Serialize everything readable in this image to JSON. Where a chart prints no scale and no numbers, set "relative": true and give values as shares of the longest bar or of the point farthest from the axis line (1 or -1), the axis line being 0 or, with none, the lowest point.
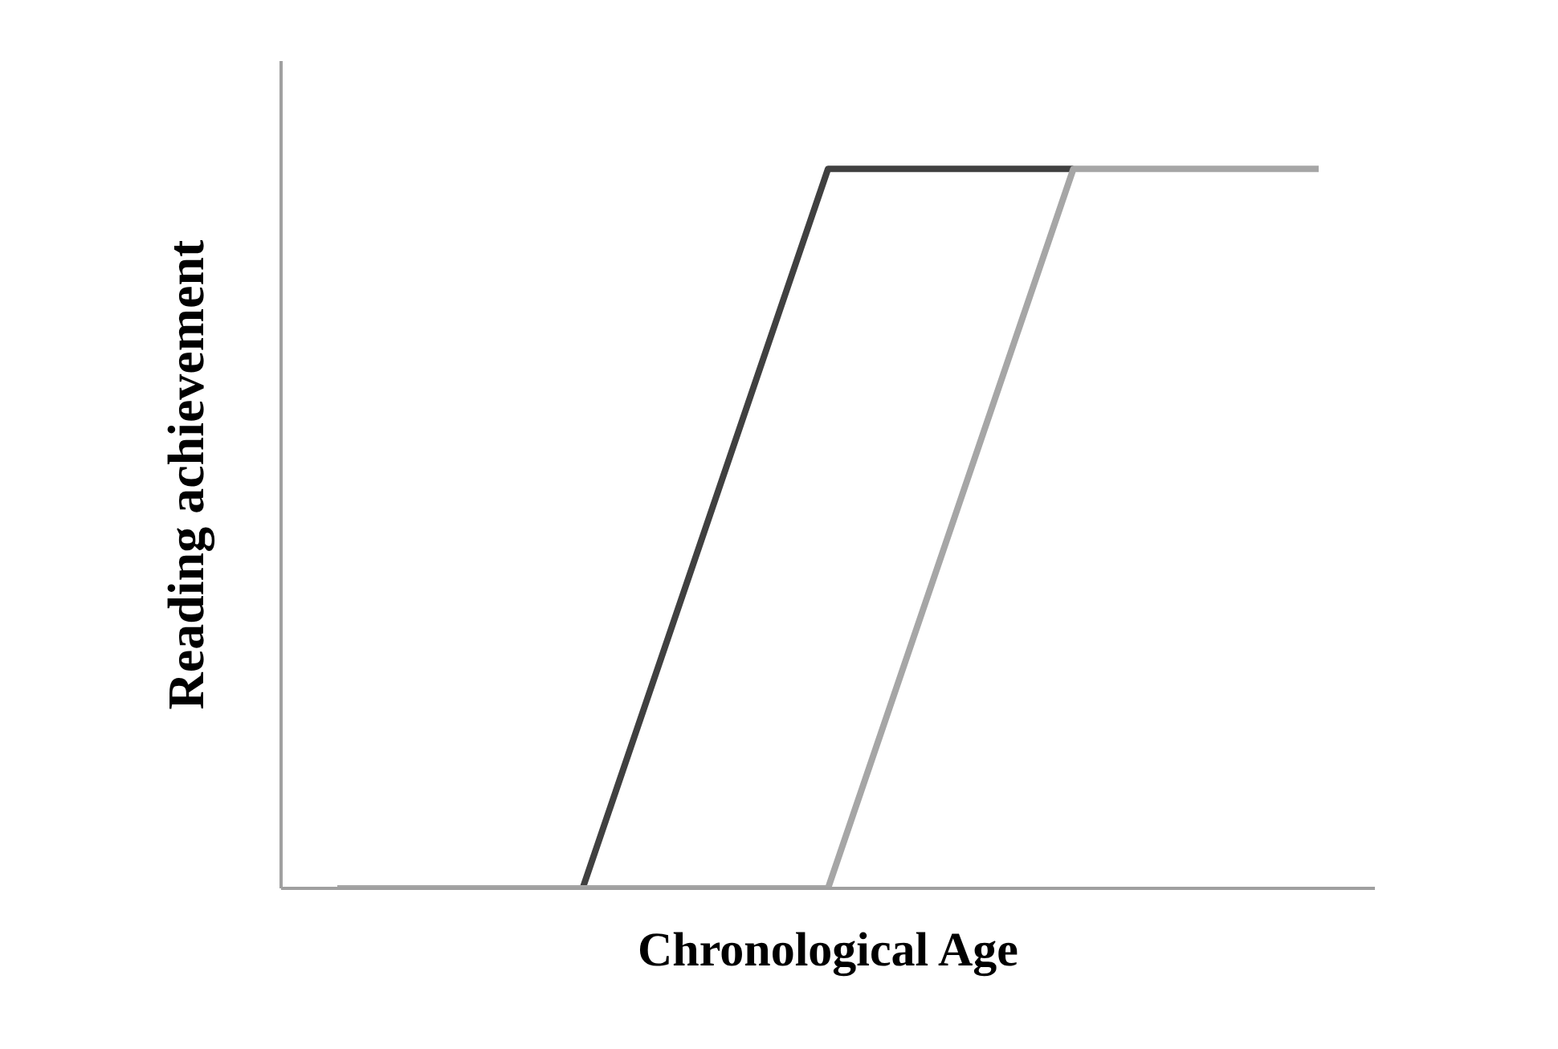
{
  "chart_data": {
    "type": "line",
    "relative": true,
    "xlabel": "Chronological Age",
    "ylabel": "Reading achievement",
    "categories": [
      null,
      null,
      null,
      null,
      null
    ],
    "series": [
      {
        "color": "#404040",
        "values": [
          null,
          0,
          1,
          1,
          null
        ]
      },
      {
        "color": "#a6a6a6",
        "values": [
          0,
          0,
          0,
          1,
          1
        ]
      }
    ],
    "grid": false,
    "legend": false,
    "marker": "none",
    "line_style": "solid"
  }
}
